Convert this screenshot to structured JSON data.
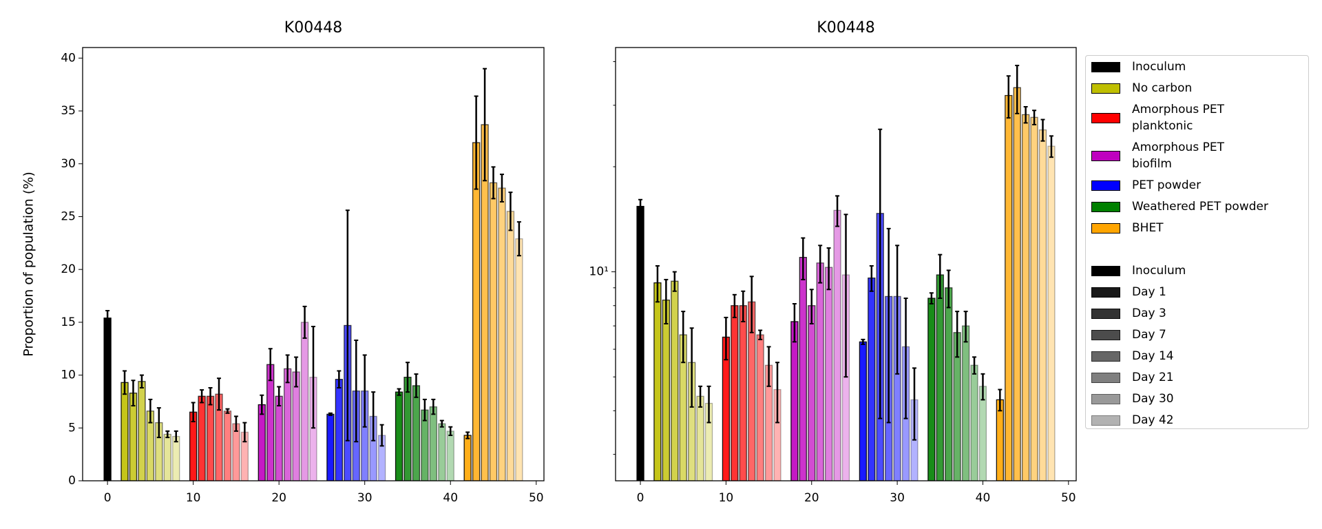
{
  "chart_data": [
    {
      "type": "bar",
      "title": "K00448",
      "ylabel": "Proportion of population (%)",
      "xlim": [
        -2.9,
        50.9
      ],
      "xticks": [
        0,
        10,
        20,
        30,
        40,
        50
      ],
      "ylim": [
        0,
        41
      ],
      "yticks": [
        0,
        5,
        10,
        15,
        20,
        25,
        30,
        35,
        40
      ],
      "alphas": [
        1,
        0.9,
        0.8,
        0.7,
        0.6,
        0.5,
        0.4,
        0.3
      ],
      "series": [
        {
          "color": "#000000",
          "x": [
            0
          ],
          "values": [
            15.4
          ],
          "errors": [
            0.7
          ]
        },
        {
          "color": "#bfbf00",
          "x": [
            2,
            3,
            4,
            5,
            6,
            7,
            8
          ],
          "values": [
            9.3,
            8.3,
            9.4,
            6.6,
            5.5,
            4.4,
            4.2
          ],
          "errors": [
            1.1,
            1.2,
            0.6,
            1.1,
            1.4,
            0.3,
            0.5
          ]
        },
        {
          "color": "#ff0000",
          "x": [
            10,
            11,
            12,
            13,
            14,
            15,
            16
          ],
          "values": [
            6.5,
            8.0,
            8.0,
            8.2,
            6.6,
            5.4,
            4.6
          ],
          "errors": [
            0.9,
            0.6,
            0.8,
            1.5,
            0.2,
            0.7,
            0.9
          ]
        },
        {
          "color": "#bf00bf",
          "x": [
            18,
            19,
            20,
            21,
            22,
            23,
            24
          ],
          "values": [
            7.2,
            11.0,
            8.0,
            10.6,
            10.3,
            15.0,
            9.8
          ],
          "errors": [
            0.9,
            1.5,
            0.9,
            1.3,
            1.4,
            1.5,
            4.8
          ]
        },
        {
          "color": "#0000ff",
          "x": [
            26,
            27,
            28,
            29,
            30,
            31,
            32
          ],
          "values": [
            6.3,
            9.6,
            14.7,
            8.5,
            8.5,
            6.1,
            4.3
          ],
          "errors": [
            0.1,
            0.8,
            10.9,
            4.8,
            3.4,
            2.3,
            1.0
          ]
        },
        {
          "color": "#008000",
          "x": [
            34,
            35,
            36,
            37,
            38,
            39,
            40
          ],
          "values": [
            8.4,
            9.8,
            9.0,
            6.7,
            7.0,
            5.4,
            4.7
          ],
          "errors": [
            0.3,
            1.4,
            1.1,
            1.0,
            0.7,
            0.3,
            0.4
          ]
        },
        {
          "color": "#ffa500",
          "x": [
            42,
            43,
            44,
            45,
            46,
            47,
            48
          ],
          "values": [
            4.3,
            32.0,
            33.7,
            28.2,
            27.7,
            25.5,
            22.9
          ],
          "errors": [
            0.3,
            4.4,
            5.3,
            1.5,
            1.3,
            1.8,
            1.6
          ]
        }
      ]
    },
    {
      "type": "bar",
      "title": "K00448",
      "log_y": true,
      "xlim": [
        -2.9,
        50.9
      ],
      "xticks": [
        0,
        10,
        20,
        30,
        40,
        50
      ],
      "ylim": [
        2.52,
        43.9
      ],
      "yticks": [
        {
          "value": 10,
          "label": "10¹"
        }
      ],
      "minor_yticks": [
        3,
        4,
        5,
        6,
        7,
        8,
        9,
        20,
        30,
        40
      ],
      "legend": true,
      "series": [
        {
          "name": "Inoculum",
          "color": "#000000",
          "x": [
            0
          ],
          "values": [
            15.4
          ],
          "errors": [
            0.7
          ]
        },
        {
          "name": "No carbon",
          "color": "#bfbf00",
          "x": [
            2,
            3,
            4,
            5,
            6,
            7,
            8
          ],
          "values": [
            9.3,
            8.3,
            9.4,
            6.6,
            5.5,
            4.4,
            4.2
          ],
          "errors": [
            1.1,
            1.2,
            0.6,
            1.1,
            1.4,
            0.3,
            0.5
          ]
        },
        {
          "name": "Amorphous PET\nplanktonic",
          "color": "#ff0000",
          "x": [
            10,
            11,
            12,
            13,
            14,
            15,
            16
          ],
          "values": [
            6.5,
            8.0,
            8.0,
            8.2,
            6.6,
            5.4,
            4.6
          ],
          "errors": [
            0.9,
            0.6,
            0.8,
            1.5,
            0.2,
            0.7,
            0.9
          ]
        },
        {
          "name": "Amorphous PET\nbiofilm",
          "color": "#bf00bf",
          "x": [
            18,
            19,
            20,
            21,
            22,
            23,
            24
          ],
          "values": [
            7.2,
            11.0,
            8.0,
            10.6,
            10.3,
            15.0,
            9.8
          ],
          "errors": [
            0.9,
            1.5,
            0.9,
            1.3,
            1.4,
            1.5,
            4.8
          ]
        },
        {
          "name": "PET powder",
          "color": "#0000ff",
          "x": [
            26,
            27,
            28,
            29,
            30,
            31,
            32
          ],
          "values": [
            6.3,
            9.6,
            14.7,
            8.5,
            8.5,
            6.1,
            4.3
          ],
          "errors": [
            0.1,
            0.8,
            10.9,
            4.8,
            3.4,
            2.3,
            1.0
          ]
        },
        {
          "name": "Weathered PET powder",
          "color": "#008000",
          "x": [
            34,
            35,
            36,
            37,
            38,
            39,
            40
          ],
          "values": [
            8.4,
            9.8,
            9.0,
            6.7,
            7.0,
            5.4,
            4.7
          ],
          "errors": [
            0.3,
            1.4,
            1.1,
            1.0,
            0.7,
            0.3,
            0.4
          ]
        },
        {
          "name": "BHET",
          "color": "#ffa500",
          "x": [
            42,
            43,
            44,
            45,
            46,
            47,
            48
          ],
          "values": [
            4.3,
            32.0,
            33.7,
            28.2,
            27.7,
            25.5,
            22.9
          ],
          "errors": [
            0.3,
            4.4,
            5.3,
            1.5,
            1.3,
            1.8,
            1.6
          ]
        }
      ],
      "alpha_legend": [
        {
          "name": "Inoculum",
          "alpha": 1
        },
        {
          "name": "Day 1",
          "alpha": 0.9
        },
        {
          "name": "Day 3",
          "alpha": 0.8
        },
        {
          "name": "Day 7",
          "alpha": 0.7
        },
        {
          "name": "Day 14",
          "alpha": 0.6
        },
        {
          "name": "Day 21",
          "alpha": 0.5
        },
        {
          "name": "Day 30",
          "alpha": 0.4
        },
        {
          "name": "Day 42",
          "alpha": 0.3
        }
      ]
    }
  ]
}
